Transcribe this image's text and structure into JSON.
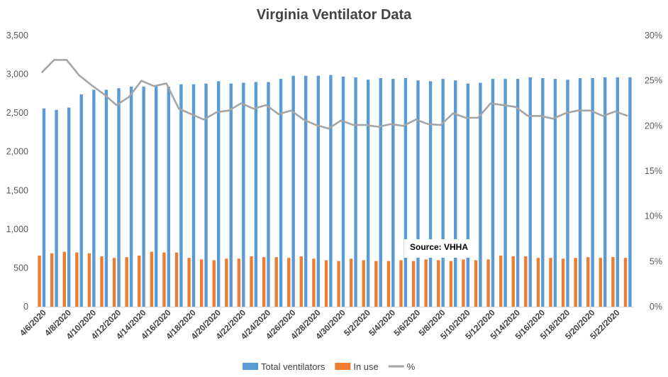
{
  "chart_data": {
    "type": "bar",
    "title": "Virginia Ventilator Data",
    "xlabel": "",
    "ylabel": "",
    "y2label": "",
    "categories": [
      "4/6/2020",
      "4/7/2020",
      "4/8/2020",
      "4/9/2020",
      "4/10/2020",
      "4/11/2020",
      "4/12/2020",
      "4/13/2020",
      "4/14/2020",
      "4/15/2020",
      "4/16/2020",
      "4/17/2020",
      "4/18/2020",
      "4/19/2020",
      "4/20/2020",
      "4/21/2020",
      "4/22/2020",
      "4/23/2020",
      "4/24/2020",
      "4/25/2020",
      "4/26/2020",
      "4/27/2020",
      "4/28/2020",
      "4/29/2020",
      "4/30/2020",
      "5/1/2020",
      "5/2/2020",
      "5/3/2020",
      "5/4/2020",
      "5/5/2020",
      "5/6/2020",
      "5/7/2020",
      "5/8/2020",
      "5/9/2020",
      "5/10/2020",
      "5/11/2020",
      "5/12/2020",
      "5/13/2020",
      "5/14/2020",
      "5/15/2020",
      "5/16/2020",
      "5/17/2020",
      "5/18/2020",
      "5/19/2020",
      "5/20/2020",
      "5/21/2020",
      "5/22/2020",
      "5/23/2020"
    ],
    "x_tick_labels": [
      "4/6/2020",
      "4/8/2020",
      "4/10/2020",
      "4/12/2020",
      "4/14/2020",
      "4/16/2020",
      "4/18/2020",
      "4/20/2020",
      "4/22/2020",
      "4/24/2020",
      "4/26/2020",
      "4/28/2020",
      "4/30/2020",
      "5/2/2020",
      "5/4/2020",
      "5/6/2020",
      "5/8/2020",
      "5/10/2020",
      "5/12/2020",
      "5/14/2020",
      "5/16/2020",
      "5/18/2020",
      "5/20/2020",
      "5/22/2020"
    ],
    "series": [
      {
        "name": "Total ventilators",
        "kind": "bar",
        "axis": "left",
        "color": "#5B9BD5",
        "values": [
          2560,
          2540,
          2570,
          2740,
          2800,
          2800,
          2820,
          2840,
          2840,
          2860,
          2840,
          2870,
          2870,
          2880,
          2910,
          2880,
          2890,
          2900,
          2900,
          2940,
          2980,
          2980,
          2980,
          2990,
          2970,
          2960,
          2930,
          2950,
          2940,
          2950,
          2920,
          2910,
          2940,
          2920,
          2880,
          2890,
          2940,
          2940,
          2940,
          2960,
          2950,
          2940,
          2930,
          2950,
          2950,
          2960,
          2960,
          2960
        ]
      },
      {
        "name": "In use",
        "kind": "bar",
        "axis": "left",
        "color": "#ED7D31",
        "values": [
          660,
          690,
          710,
          700,
          690,
          650,
          630,
          640,
          660,
          710,
          700,
          700,
          630,
          610,
          600,
          620,
          620,
          650,
          640,
          640,
          630,
          650,
          620,
          600,
          590,
          620,
          600,
          590,
          590,
          600,
          590,
          610,
          600,
          590,
          610,
          600,
          610,
          660,
          650,
          650,
          630,
          630,
          620,
          630,
          640,
          630,
          640,
          630
        ]
      },
      {
        "name": "%",
        "kind": "line",
        "axis": "right",
        "color": "#A5A5A5",
        "values": [
          25.9,
          27.3,
          27.3,
          25.6,
          24.5,
          23.5,
          22.3,
          23.2,
          25.0,
          24.4,
          24.7,
          21.9,
          21.3,
          20.7,
          21.5,
          21.7,
          22.5,
          21.9,
          22.3,
          21.3,
          21.7,
          20.7,
          20.1,
          19.7,
          20.6,
          20.1,
          20.1,
          19.9,
          20.2,
          20.0,
          20.7,
          20.2,
          20.1,
          21.4,
          20.9,
          20.9,
          22.5,
          22.3,
          22.1,
          21.1,
          21.1,
          20.8,
          21.4,
          21.7,
          21.7,
          21.1,
          21.6,
          21.1
        ]
      }
    ],
    "ylim": [
      0,
      3500
    ],
    "yticks": [
      0,
      500,
      1000,
      1500,
      2000,
      2500,
      3000,
      3500
    ],
    "ytick_labels": [
      "0",
      "500",
      "1,000",
      "1,500",
      "2,000",
      "2,500",
      "3,000",
      "3,500"
    ],
    "y2lim": [
      0,
      30
    ],
    "y2ticks": [
      0,
      5,
      10,
      15,
      20,
      25,
      30
    ],
    "y2tick_labels": [
      "0%",
      "5%",
      "10%",
      "15%",
      "20%",
      "25%",
      "30%"
    ],
    "grid": false,
    "legend": "bottom",
    "annotation": "Source: VHHA"
  }
}
